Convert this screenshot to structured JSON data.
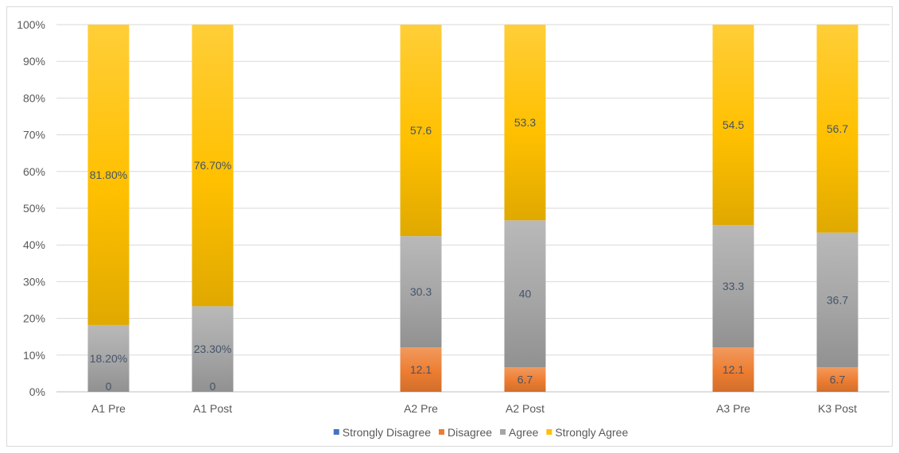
{
  "chart_data": {
    "type": "bar",
    "stacked": true,
    "percent_stacked": true,
    "categories": [
      "A1 Pre",
      "A1 Post",
      "A2 Pre",
      "A2 Post",
      "A3 Pre",
      "K3 Post"
    ],
    "group_gaps_after": [
      1,
      3
    ],
    "series": [
      {
        "name": "Strongly Disagree",
        "color": "#4472c4",
        "values": [
          0,
          0,
          0,
          0,
          0,
          0
        ],
        "labels": [
          "",
          "",
          "",
          "",
          "",
          ""
        ]
      },
      {
        "name": "Disagree",
        "color": "#ed7d31",
        "values": [
          0,
          0,
          12.1,
          6.7,
          12.1,
          6.7
        ],
        "labels": [
          "0",
          "0",
          "12.1",
          "6.7",
          "12.1",
          "6.7"
        ]
      },
      {
        "name": "Agree",
        "color": "#a5a5a5",
        "values": [
          18.2,
          23.3,
          30.3,
          40,
          33.3,
          36.7
        ],
        "labels": [
          "18.20%",
          "23.30%",
          "30.3",
          "40",
          "33.3",
          "36.7"
        ]
      },
      {
        "name": "Strongly Agree",
        "color": "#ffc000",
        "values": [
          81.8,
          76.7,
          57.6,
          53.3,
          54.5,
          56.7
        ],
        "labels": [
          "81.80%",
          "76.70%",
          "57.6",
          "53.3",
          "54.5",
          "56.7"
        ]
      }
    ],
    "y_ticks": [
      "0%",
      "10%",
      "20%",
      "30%",
      "40%",
      "50%",
      "60%",
      "70%",
      "80%",
      "90%",
      "100%"
    ],
    "ylim": [
      0,
      100
    ],
    "grid": true,
    "legend_position": "bottom",
    "title": "",
    "xlabel": "",
    "ylabel": ""
  }
}
